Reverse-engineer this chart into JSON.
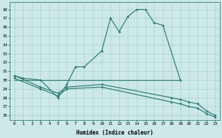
{
  "xlabel": "Humidex (Indice chaleur)",
  "color": "#2e7d72",
  "bg_color": "#cce8e8",
  "grid_color": "#aad0d0",
  "ylim": [
    25.5,
    38.8
  ],
  "yticks": [
    26,
    27,
    28,
    29,
    30,
    31,
    32,
    33,
    34,
    35,
    36,
    37,
    38
  ],
  "xlim": [
    -0.5,
    23.5
  ],
  "xticks": [
    0,
    1,
    2,
    3,
    4,
    5,
    6,
    7,
    8,
    9,
    10,
    11,
    12,
    13,
    14,
    15,
    16,
    17,
    18,
    19,
    20,
    21,
    22,
    23
  ],
  "series": {
    "main": {
      "x": [
        0,
        1,
        3,
        5,
        6,
        7,
        8,
        10,
        11,
        12,
        13,
        14,
        15,
        16,
        17,
        19
      ],
      "y": [
        30.5,
        30.2,
        30.0,
        28.0,
        29.5,
        31.5,
        31.5,
        33.3,
        37.0,
        35.5,
        37.2,
        38.0,
        38.0,
        36.5,
        36.2,
        30.0
      ]
    },
    "flat": {
      "x": [
        0,
        1,
        2,
        3,
        4,
        5,
        6,
        7,
        8,
        9,
        10,
        11,
        12,
        13,
        14,
        15,
        16,
        17,
        18,
        19
      ],
      "y": [
        30.0,
        30.0,
        30.0,
        30.0,
        30.0,
        30.0,
        30.0,
        30.0,
        30.0,
        30.0,
        30.0,
        30.0,
        30.0,
        30.0,
        30.0,
        30.0,
        30.0,
        30.0,
        30.0,
        30.0
      ]
    },
    "lower1": {
      "x": [
        0,
        3,
        5,
        6,
        10,
        18,
        19,
        20,
        21,
        22,
        23
      ],
      "y": [
        30.5,
        29.2,
        28.5,
        29.2,
        29.5,
        28.0,
        27.8,
        27.5,
        27.3,
        26.5,
        26.0
      ]
    },
    "lower2": {
      "x": [
        0,
        3,
        5,
        6,
        10,
        18,
        19,
        20,
        21,
        22,
        23
      ],
      "y": [
        30.2,
        29.0,
        28.2,
        29.0,
        29.2,
        27.5,
        27.3,
        27.0,
        26.8,
        26.2,
        25.8
      ]
    }
  }
}
